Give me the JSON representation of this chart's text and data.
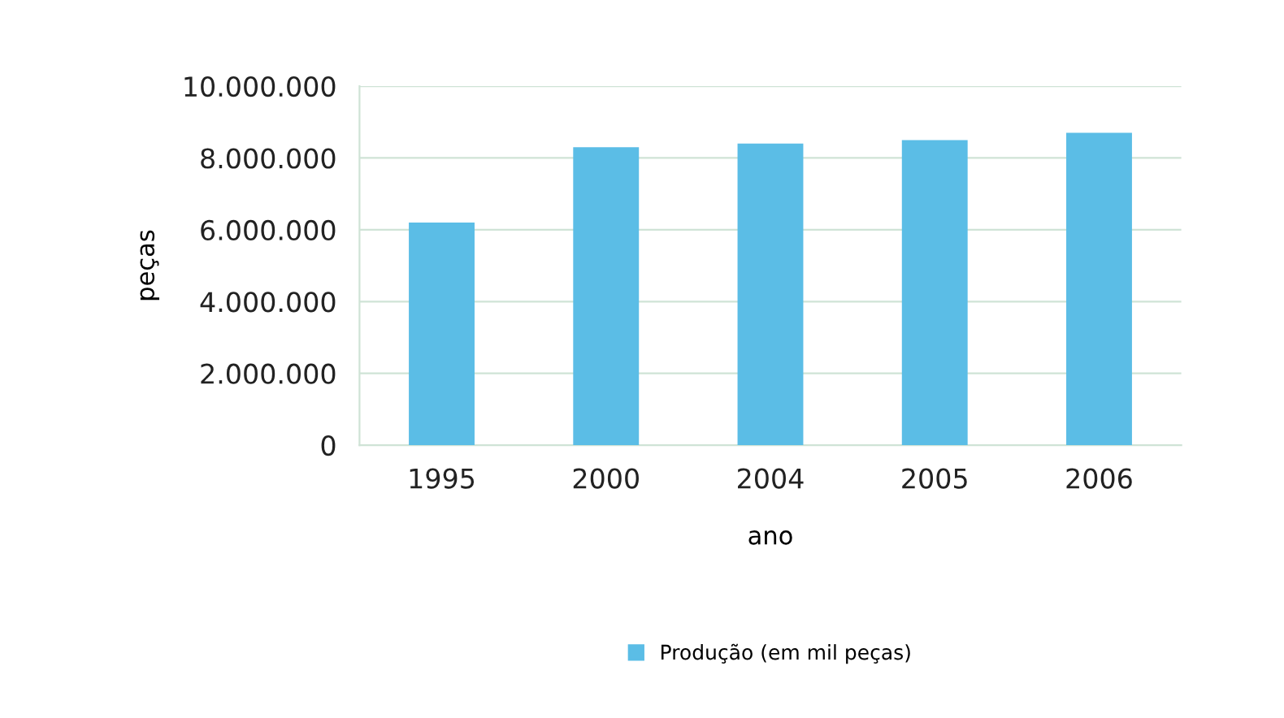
{
  "chart_data": {
    "type": "bar",
    "xlabel": "ano",
    "ylabel": "peças",
    "categories": [
      "1995",
      "2000",
      "2004",
      "2005",
      "2006"
    ],
    "series": [
      {
        "name": "Produção (em mil peças)",
        "color": "#5bbde6",
        "values": [
          6200000,
          8300000,
          8400000,
          8500000,
          8700000
        ]
      }
    ],
    "ylim": [
      0,
      10000000
    ],
    "yticks": [
      {
        "value": 0,
        "label": "0"
      },
      {
        "value": 2000000,
        "label": "2.000.000"
      },
      {
        "value": 4000000,
        "label": "4.000.000"
      },
      {
        "value": 6000000,
        "label": "6.000.000"
      },
      {
        "value": 8000000,
        "label": "8.000.000"
      },
      {
        "value": 10000000,
        "label": "10.000.000"
      }
    ],
    "grid": "y",
    "legend": "bottom"
  }
}
